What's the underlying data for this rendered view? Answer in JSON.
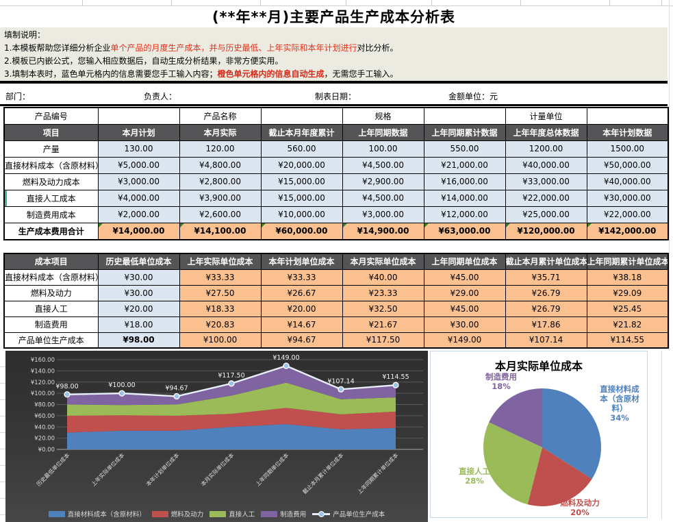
{
  "page": {
    "title": "(**年**月)主要产品生产成本分析表"
  },
  "instructions": {
    "heading": "填制说明：",
    "lines": [
      [
        {
          "t": "1.本模板帮助您详细分析企业"
        },
        {
          "t": "单个产品的月度生产成本，并与历史最低、上年实际和本年计划进行",
          "red": true
        },
        {
          "t": "对比分析。"
        }
      ],
      [
        {
          "t": "2.模板已内嵌公式，您输入相应数据后，自动生成分析结果，非常方便实用。"
        }
      ],
      [
        {
          "t": "3.填制本表时，蓝色单元格内的信息需要您手工输入内容；"
        },
        {
          "t": "橙色单元格内的信息自动生成",
          "boldred": true
        },
        {
          "t": "，无需您手工输入。"
        }
      ]
    ]
  },
  "info_bar": {
    "department": "部门：",
    "manager": "负责人：",
    "date": "制表日期：",
    "unit": "金额单位：元"
  },
  "cost_table": {
    "top_row": [
      "产品编号",
      "",
      "产品名称",
      "",
      "规格",
      "",
      "计量单位",
      ""
    ],
    "header": [
      "项目",
      "本月计划",
      "本月实际",
      "截止本月年度累计",
      "上年同期数据",
      "上年同期累计数据",
      "上年年度总体数据",
      "本年计划数据"
    ],
    "rows": [
      {
        "label": "产量",
        "fill": "blue",
        "values": [
          "130.00",
          "120.00",
          "560.00",
          "100.00",
          "550.00",
          "1200.00",
          "1500.00"
        ]
      },
      {
        "label": "直接材料成本（含原材料）",
        "fill": "blue",
        "values": [
          "¥5,000.00",
          "¥4,800.00",
          "¥20,000.00",
          "¥4,500.00",
          "¥21,000.00",
          "¥40,000.00",
          "¥50,000.00"
        ]
      },
      {
        "label": "燃料及动力成本",
        "fill": "blue",
        "values": [
          "¥3,000.00",
          "¥2,800.00",
          "¥15,000.00",
          "¥2,900.00",
          "¥16,000.00",
          "¥33,000.00",
          "¥40,000.00"
        ]
      },
      {
        "label": "直接人工成本",
        "fill": "blue",
        "accent": true,
        "values": [
          "¥4,000.00",
          "¥3,900.00",
          "¥15,000.00",
          "¥4,500.00",
          "¥14,000.00",
          "¥22,000.00",
          "¥30,000.00"
        ]
      },
      {
        "label": "制造费用成本",
        "fill": "blue",
        "values": [
          "¥2,000.00",
          "¥2,600.00",
          "¥10,000.00",
          "¥3,000.00",
          "¥12,000.00",
          "¥25,000.00",
          "¥22,000.00"
        ]
      },
      {
        "label": "生产成本费用合计",
        "fill": "orange",
        "bold": true,
        "triangles": true,
        "values": [
          "¥14,000.00",
          "¥14,100.00",
          "¥60,000.00",
          "¥14,900.00",
          "¥63,000.00",
          "¥120,000.00",
          "¥142,000.00"
        ]
      }
    ]
  },
  "unit_cost_table": {
    "header": [
      "成本项目",
      "历史最低单位成本",
      "上年实际单位成本",
      "本年计划单位成本",
      "本月实际单位成本",
      "上年同期单位成本",
      "截止本月累计单位成本",
      "上年同期累计单位成本"
    ],
    "rows": [
      {
        "label": "直接材料成本（含原材料）",
        "values": [
          "¥30.00",
          "¥33.33",
          "¥33.33",
          "¥40.00",
          "¥45.00",
          "¥35.71",
          "¥38.18"
        ]
      },
      {
        "label": "燃料及动力",
        "values": [
          "¥30.00",
          "¥27.50",
          "¥26.67",
          "¥23.33",
          "¥29.00",
          "¥26.79",
          "¥29.09"
        ]
      },
      {
        "label": "直接人工",
        "values": [
          "¥20.00",
          "¥18.33",
          "¥20.00",
          "¥32.50",
          "¥45.00",
          "¥26.79",
          "¥25.45"
        ]
      },
      {
        "label": "制造费用",
        "values": [
          "¥18.00",
          "¥20.83",
          "¥14.67",
          "¥21.67",
          "¥30.00",
          "¥17.86",
          "¥21.82"
        ]
      },
      {
        "label": "产品单位生产成本",
        "first_bold": true,
        "values": [
          "¥98.00",
          "¥100.00",
          "¥94.67",
          "¥117.50",
          "¥149.00",
          "¥107.14",
          "¥114.55"
        ]
      }
    ]
  },
  "chart_data": [
    {
      "type": "area",
      "title": "",
      "categories": [
        "历史最低单位成本",
        "上年实际单位成本",
        "本年计划单位成本",
        "本月实际单位成本",
        "上年同期单位成本",
        "截止本月累计单位成本",
        "上年同期累计单位成本"
      ],
      "series": [
        {
          "name": "直接材料成本（含原材料）",
          "color": "#4F81BD",
          "values": [
            30,
            33.33,
            33.33,
            40,
            45,
            35.71,
            38.18
          ]
        },
        {
          "name": "燃料及动力",
          "color": "#C0504D",
          "values": [
            30,
            27.5,
            26.67,
            23.33,
            29,
            26.79,
            29.09
          ]
        },
        {
          "name": "直接人工",
          "color": "#9BBB59",
          "values": [
            20,
            18.33,
            20,
            32.5,
            45,
            26.79,
            25.45
          ]
        },
        {
          "name": "制造费用",
          "color": "#8064A2",
          "values": [
            18,
            20.83,
            14.67,
            21.67,
            30,
            17.86,
            21.82
          ]
        },
        {
          "name": "产品单位生产成本",
          "kind": "line",
          "color": "#E8EEF7",
          "values": [
            98,
            100,
            94.67,
            117.5,
            149,
            107.14,
            114.55
          ],
          "labels": [
            "¥98.00",
            "¥100.00",
            "¥94.67",
            "¥117.50",
            "¥149.00",
            "¥107.14",
            "¥114.55"
          ]
        }
      ],
      "y_ticks": [
        "¥160.00",
        "¥140.00",
        "¥120.00",
        "¥100.00",
        "¥80.00",
        "¥60.00",
        "¥40.00",
        "¥20.00",
        "¥0.00"
      ],
      "ylim": [
        0,
        160
      ],
      "legend_position": "bottom",
      "background": "dark"
    },
    {
      "type": "pie",
      "title": "本月实际单位成本",
      "slices": [
        {
          "label": "直接材料成本（含原材料）",
          "pct": 34,
          "pct_label": "34%",
          "color": "#4F81BD",
          "label_lines": [
            "直接材料成",
            "本（含原材",
            "料）"
          ]
        },
        {
          "label": "燃料及动力",
          "pct": 20,
          "pct_label": "20%",
          "color": "#C0504D",
          "label_lines": [
            "燃料及动力"
          ]
        },
        {
          "label": "直接人工",
          "pct": 28,
          "pct_label": "28%",
          "color": "#9BBB59",
          "label_lines": [
            "直接人工"
          ]
        },
        {
          "label": "制造费用",
          "pct": 18,
          "pct_label": "18%",
          "color": "#8064A2",
          "label_lines": [
            "制造费用"
          ]
        }
      ]
    }
  ],
  "colors": {
    "header_bg": "#555557",
    "cell_blue": "#DCE6F1",
    "cell_orange": "#FAC090",
    "instruction_bg": "#ECEBE2",
    "red_text": "#E2321B",
    "chart_bg": "#383838",
    "marker_fill": "#9DC3E6"
  }
}
